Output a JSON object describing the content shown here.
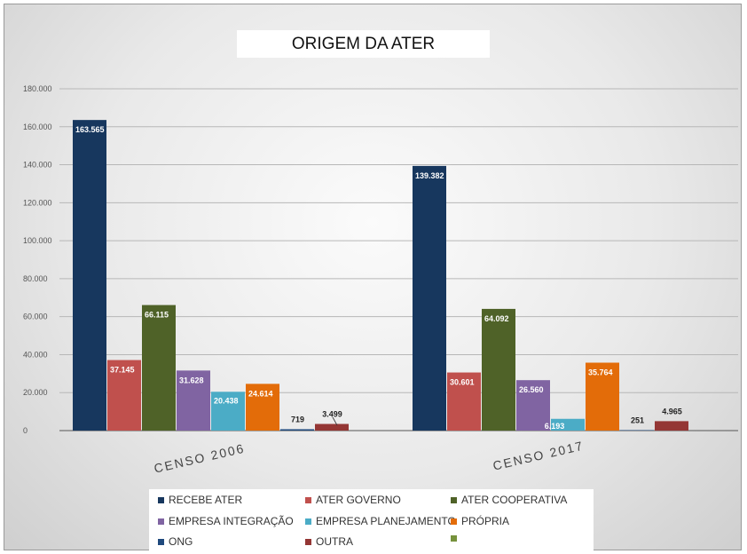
{
  "chart_data": {
    "type": "bar",
    "title": "ORIGEM DA ATER",
    "categories": [
      "CENSO 2006",
      "CENSO 2017"
    ],
    "ylim": [
      0,
      180000
    ],
    "yticks": [
      0,
      20000,
      40000,
      60000,
      80000,
      100000,
      120000,
      140000,
      160000,
      180000
    ],
    "ytick_labels": [
      "0",
      "20.000",
      "40.000",
      "60.000",
      "80.000",
      "100.000",
      "120.000",
      "140.000",
      "160.000",
      "180.000"
    ],
    "grid": true,
    "legend_position": "bottom",
    "series": [
      {
        "name": "RECEBE ATER",
        "color": "#17375e",
        "values": [
          163565,
          139382
        ],
        "labels": [
          "163.565",
          "139.382"
        ]
      },
      {
        "name": "ATER GOVERNO",
        "color": "#c0504d",
        "values": [
          37145,
          30601
        ],
        "labels": [
          "37.145",
          "30.601"
        ]
      },
      {
        "name": "ATER COOPERATIVA",
        "color": "#4f6228",
        "values": [
          66115,
          64092
        ],
        "labels": [
          "66.115",
          "64.092"
        ]
      },
      {
        "name": "EMPRESA INTEGRAÇÃO",
        "color": "#8064a2",
        "values": [
          31628,
          26560
        ],
        "labels": [
          "31.628",
          "26.560"
        ]
      },
      {
        "name": "EMPRESA PLANEJAMENTO",
        "color": "#4bacc6",
        "values": [
          20438,
          6193
        ],
        "labels": [
          "20.438",
          "6.193"
        ]
      },
      {
        "name": "PRÓPRIA",
        "color": "#e36c09",
        "values": [
          24614,
          35764
        ],
        "labels": [
          "24.614",
          "35.764"
        ]
      },
      {
        "name": "ONG",
        "color": "#1f497d",
        "values": [
          719,
          251
        ],
        "labels": [
          "719",
          "251"
        ]
      },
      {
        "name": "OUTRA",
        "color": "#943634",
        "values": [
          3499,
          4965
        ],
        "labels": [
          "3.499",
          "4.965"
        ]
      },
      {
        "name": "",
        "color": "#76923c",
        "values": [
          0,
          0
        ],
        "labels": [
          "",
          ""
        ]
      }
    ]
  }
}
